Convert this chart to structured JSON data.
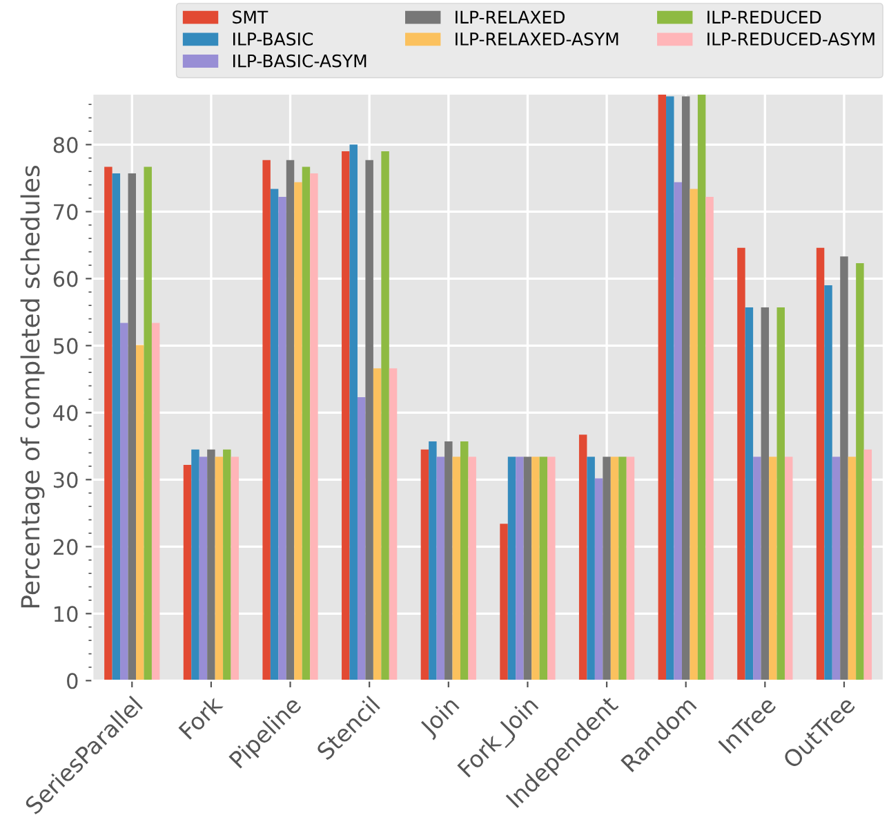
{
  "chart_data": {
    "type": "bar",
    "ylabel": "Percentage of completed schedules",
    "categories": [
      "SeriesParallel",
      "Fork",
      "Pipeline",
      "Stencil",
      "Join",
      "Fork_Join",
      "Independent",
      "Random",
      "InTree",
      "OutTree"
    ],
    "series": [
      {
        "name": "SMT",
        "color": "#e24a33",
        "values": [
          76.7,
          32.2,
          77.7,
          79.0,
          34.5,
          23.4,
          36.7,
          87.6,
          64.6,
          64.6
        ]
      },
      {
        "name": "ILP-BASIC",
        "color": "#348abd",
        "values": [
          75.7,
          34.5,
          73.4,
          80.0,
          35.7,
          33.4,
          33.4,
          87.2,
          55.7,
          59.0
        ]
      },
      {
        "name": "ILP-BASIC-ASYM",
        "color": "#988ed5",
        "values": [
          53.4,
          33.4,
          72.2,
          42.3,
          33.4,
          33.4,
          30.2,
          74.4,
          33.4,
          33.4
        ]
      },
      {
        "name": "ILP-RELAXED",
        "color": "#777777",
        "values": [
          75.7,
          34.5,
          77.7,
          77.7,
          35.7,
          33.4,
          33.4,
          87.2,
          55.7,
          63.3
        ]
      },
      {
        "name": "ILP-RELAXED-ASYM",
        "color": "#fbc15e",
        "values": [
          50.1,
          33.4,
          74.4,
          46.6,
          33.4,
          33.4,
          33.4,
          73.4,
          33.4,
          33.4
        ]
      },
      {
        "name": "ILP-REDUCED",
        "color": "#8eba42",
        "values": [
          76.7,
          34.5,
          76.7,
          79.0,
          35.7,
          33.4,
          33.4,
          87.6,
          55.7,
          62.3
        ]
      },
      {
        "name": "ILP-REDUCED-ASYM",
        "color": "#ffb5b8",
        "values": [
          53.4,
          33.4,
          75.7,
          46.6,
          33.4,
          33.4,
          33.4,
          72.2,
          33.4,
          34.5
        ]
      }
    ],
    "ylim": [
      0,
      87.6
    ],
    "yticks": [
      0,
      10,
      20,
      30,
      40,
      50,
      60,
      70,
      80
    ],
    "grid": true,
    "legend": "top"
  }
}
